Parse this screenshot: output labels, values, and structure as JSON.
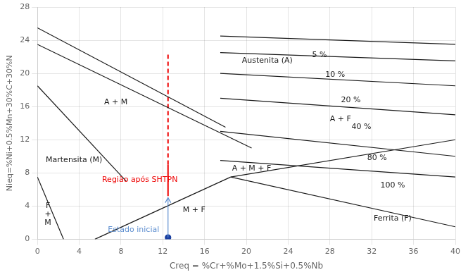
{
  "chart_data": {
    "type": "line",
    "xlabel": "Creq = %Cr+%Mo+1.5%Si+0.5%Nb",
    "ylabel": "Nieq=%Ni+0.5%Mn+30%C+30%N",
    "xlim": [
      0,
      40
    ],
    "ylim": [
      0,
      28
    ],
    "xticks": [
      0,
      4,
      8,
      12,
      16,
      20,
      24,
      28,
      32,
      36,
      40
    ],
    "yticks": [
      0,
      4,
      8,
      12,
      16,
      20,
      24,
      28
    ],
    "grid": true,
    "series": [
      {
        "color": "#1a1a1a",
        "x": [
          0,
          18
        ],
        "values": [
          25.5,
          13.5
        ]
      },
      {
        "color": "#1a1a1a",
        "x": [
          0,
          20.5
        ],
        "values": [
          23.5,
          11.0
        ]
      },
      {
        "color": "#1a1a1a",
        "x": [
          0,
          8.5
        ],
        "values": [
          18.5,
          7.0
        ]
      },
      {
        "color": "#1a1a1a",
        "x": [
          0,
          2.5
        ],
        "values": [
          7.5,
          0.0
        ]
      },
      {
        "color": "#1a1a1a",
        "x": [
          5.5,
          18.5
        ],
        "values": [
          0.0,
          7.5
        ]
      },
      {
        "color": "#1a1a1a",
        "x": [
          18.5,
          40
        ],
        "values": [
          7.5,
          1.5
        ]
      },
      {
        "color": "#1a1a1a",
        "x": [
          18.5,
          40
        ],
        "values": [
          7.5,
          12.0
        ]
      },
      {
        "color": "#1a1a1a",
        "x": [
          17.5,
          40
        ],
        "values": [
          24.5,
          23.5
        ]
      },
      {
        "color": "#1a1a1a",
        "x": [
          17.5,
          40
        ],
        "values": [
          22.5,
          21.5
        ]
      },
      {
        "color": "#1a1a1a",
        "x": [
          17.5,
          40
        ],
        "values": [
          20.0,
          18.5
        ]
      },
      {
        "color": "#1a1a1a",
        "x": [
          17.5,
          40
        ],
        "values": [
          17.0,
          15.0
        ]
      },
      {
        "color": "#1a1a1a",
        "x": [
          17.5,
          40
        ],
        "values": [
          13.0,
          10.0
        ]
      },
      {
        "color": "#1a1a1a",
        "x": [
          17.5,
          40
        ],
        "values": [
          9.5,
          7.5
        ]
      },
      {
        "color": "#ee0000",
        "line_style": "solid",
        "x": [
          12.5,
          12.5
        ],
        "values": [
          5.2,
          9.0
        ]
      },
      {
        "color": "#ee0000",
        "line_style": "dashed",
        "x": [
          12.5,
          12.5
        ],
        "values": [
          9.0,
          22.5
        ]
      },
      {
        "type": "scatter",
        "marker": "circle",
        "color": "#1a3fa0",
        "x": [
          12.5
        ],
        "values": [
          0.2
        ]
      }
    ],
    "arrows": [
      {
        "x": 12.5,
        "y_tail": 0.2,
        "y_head": 5.0,
        "color": "#6090d0"
      }
    ],
    "annotations": [
      {
        "text": "5 %",
        "x": 27.0,
        "y": 22.2,
        "color": "#1a1a1a"
      },
      {
        "text": "10 %",
        "x": 28.5,
        "y": 19.8,
        "color": "#1a1a1a"
      },
      {
        "text": "20 %",
        "x": 30.0,
        "y": 16.8,
        "color": "#1a1a1a"
      },
      {
        "text": "40 %",
        "x": 31.0,
        "y": 13.5,
        "color": "#1a1a1a"
      },
      {
        "text": "80 %",
        "x": 32.5,
        "y": 9.8,
        "color": "#1a1a1a"
      },
      {
        "text": "100 %",
        "x": 34.0,
        "y": 6.5,
        "color": "#1a1a1a"
      },
      {
        "text": "Austenita (A)",
        "x": 22,
        "y": 21.5,
        "color": "#1a1a1a"
      },
      {
        "text": "A + M",
        "x": 7.5,
        "y": 16.5,
        "color": "#1a1a1a"
      },
      {
        "text": "A + F",
        "x": 29,
        "y": 14.5,
        "color": "#1a1a1a"
      },
      {
        "text": "A + M + F",
        "x": 20.5,
        "y": 8.5,
        "color": "#1a1a1a"
      },
      {
        "text": "M + F",
        "x": 15.0,
        "y": 3.5,
        "color": "#1a1a1a"
      },
      {
        "text": "Martensita (M)",
        "x": 3.5,
        "y": 9.5,
        "color": "#1a1a1a"
      },
      {
        "text": "Ferrita (F)",
        "x": 34,
        "y": 2.5,
        "color": "#1a1a1a"
      },
      {
        "text": "F\n+\nM",
        "x": 1.0,
        "y": 3.0,
        "color": "#1a1a1a"
      },
      {
        "text": "Região após SHTPN",
        "x": 9.8,
        "y": 7.2,
        "color": "#ee0000"
      },
      {
        "text": "Estado inicial",
        "x": 9.2,
        "y": 1.1,
        "color": "#6090d0"
      }
    ]
  }
}
